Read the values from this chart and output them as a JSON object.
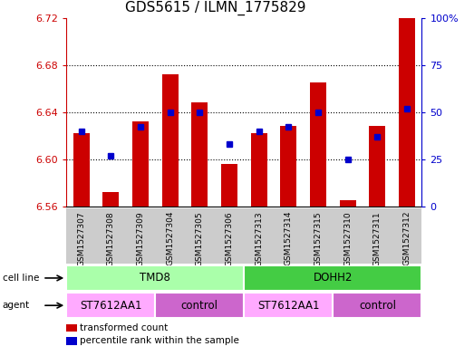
{
  "title": "GDS5615 / ILMN_1775829",
  "samples": [
    "GSM1527307",
    "GSM1527308",
    "GSM1527309",
    "GSM1527304",
    "GSM1527305",
    "GSM1527306",
    "GSM1527313",
    "GSM1527314",
    "GSM1527315",
    "GSM1527310",
    "GSM1527311",
    "GSM1527312"
  ],
  "transformed_counts": [
    6.622,
    6.572,
    6.632,
    6.672,
    6.648,
    6.596,
    6.622,
    6.628,
    6.665,
    6.565,
    6.628,
    6.72
  ],
  "percentile_ranks": [
    40,
    27,
    42,
    50,
    50,
    33,
    40,
    42,
    50,
    25,
    37,
    52
  ],
  "ymin": 6.56,
  "ymax": 6.72,
  "yticks": [
    6.56,
    6.6,
    6.64,
    6.68,
    6.72
  ],
  "right_yticks": [
    0,
    25,
    50,
    75,
    100
  ],
  "bar_color": "#cc0000",
  "dot_color": "#0000cc",
  "cell_line_groups": [
    {
      "label": "TMD8",
      "start": 0,
      "end": 6,
      "color": "#aaffaa"
    },
    {
      "label": "DOHH2",
      "start": 6,
      "end": 12,
      "color": "#44cc44"
    }
  ],
  "agent_groups": [
    {
      "label": "ST7612AA1",
      "start": 0,
      "end": 3,
      "color": "#ffaaff"
    },
    {
      "label": "control",
      "start": 3,
      "end": 6,
      "color": "#cc66cc"
    },
    {
      "label": "ST7612AA1",
      "start": 6,
      "end": 9,
      "color": "#ffaaff"
    },
    {
      "label": "control",
      "start": 9,
      "end": 12,
      "color": "#cc66cc"
    }
  ],
  "legend_items": [
    {
      "label": "transformed count",
      "color": "#cc0000"
    },
    {
      "label": "percentile rank within the sample",
      "color": "#0000cc"
    }
  ],
  "bg_color": "#ffffff",
  "bar_color_left": "#cc0000",
  "tick_color_right": "#0000cc",
  "title_fontsize": 11,
  "tick_fontsize": 8,
  "sample_fontsize": 6.5,
  "bar_baseline": 6.56
}
